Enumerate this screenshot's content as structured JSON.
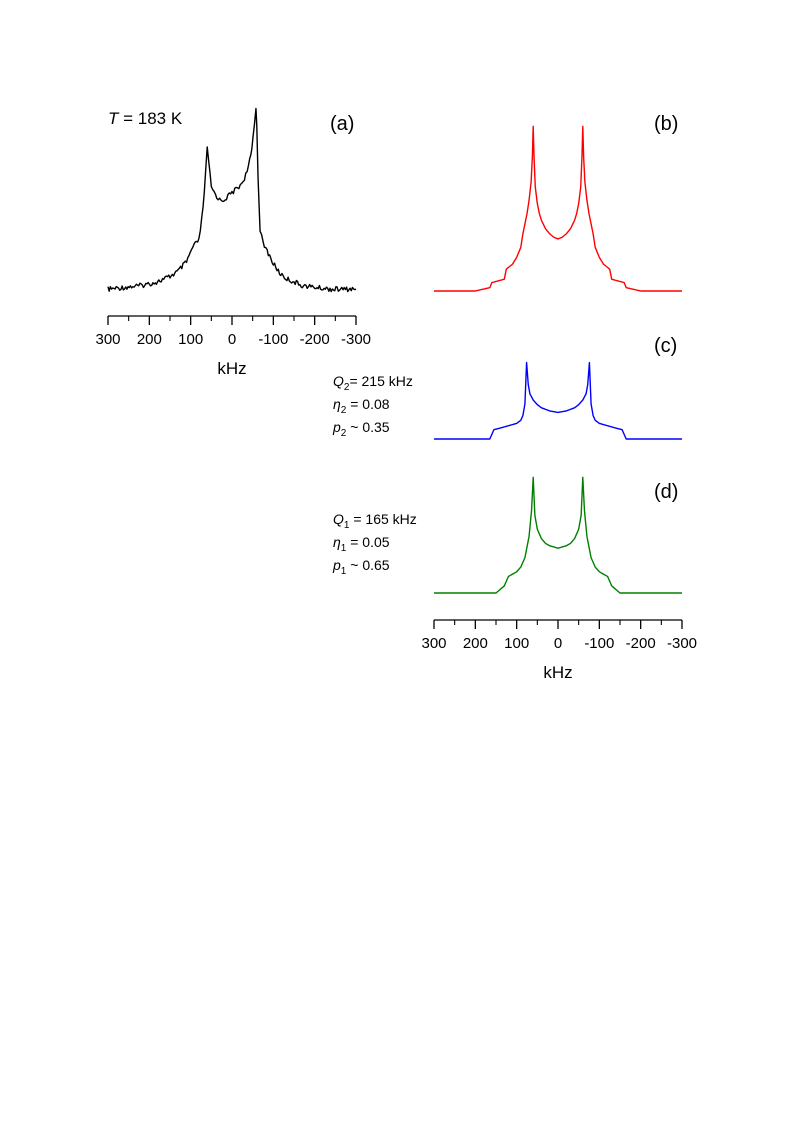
{
  "chart_data": [
    {
      "panel": "(a)",
      "type": "line",
      "kind": "experimental",
      "annotation": {
        "symbol": "T",
        "text": " = 183 K"
      },
      "xlabel": "kHz",
      "xlim": [
        300,
        -300
      ],
      "xticks": [
        300,
        200,
        100,
        0,
        -100,
        -200,
        -300
      ],
      "x_reversed": true,
      "color": "#000000",
      "noise": true,
      "series": [
        {
          "x": [
            300,
            260,
            220,
            180,
            150,
            130,
            110,
            95,
            80,
            70,
            64,
            60,
            56,
            50,
            40,
            30,
            20,
            10,
            0,
            -10,
            -20,
            -30,
            -40,
            -48,
            -54,
            -58,
            -60,
            -63,
            -68,
            -75,
            -85,
            -100,
            -115,
            -130,
            -150,
            -170,
            -200,
            -240,
            -300
          ],
          "y": [
            0.01,
            0.02,
            0.03,
            0.05,
            0.08,
            0.11,
            0.16,
            0.24,
            0.28,
            0.45,
            0.65,
            0.78,
            0.7,
            0.57,
            0.53,
            0.5,
            0.5,
            0.52,
            0.54,
            0.56,
            0.58,
            0.62,
            0.68,
            0.78,
            0.92,
            1.0,
            0.92,
            0.62,
            0.34,
            0.26,
            0.22,
            0.15,
            0.1,
            0.07,
            0.05,
            0.03,
            0.02,
            0.01,
            0.01
          ]
        }
      ]
    },
    {
      "panel": "(b)",
      "type": "line",
      "kind": "simulation-sum",
      "xlim": [
        300,
        -300
      ],
      "x_reversed": true,
      "color": "#ff0000",
      "series": [
        {
          "x": [
            300,
            240,
            200,
            165,
            160,
            130,
            125,
            110,
            100,
            90,
            85,
            80,
            75,
            70,
            65,
            62,
            60,
            58,
            55,
            50,
            45,
            40,
            30,
            20,
            10,
            0,
            -10,
            -20,
            -30,
            -40,
            -45,
            -50,
            -55,
            -58,
            -60,
            -62,
            -65,
            -70,
            -75,
            -80,
            -85,
            -90,
            -100,
            -110,
            -125,
            -130,
            -160,
            -165,
            -200,
            -240,
            -300
          ],
          "y": [
            0.0,
            0.0,
            0.0,
            0.02,
            0.05,
            0.07,
            0.13,
            0.16,
            0.2,
            0.26,
            0.34,
            0.4,
            0.46,
            0.54,
            0.65,
            0.8,
            0.98,
            0.8,
            0.62,
            0.52,
            0.46,
            0.42,
            0.37,
            0.34,
            0.32,
            0.31,
            0.32,
            0.34,
            0.37,
            0.42,
            0.46,
            0.52,
            0.62,
            0.8,
            0.98,
            0.8,
            0.65,
            0.54,
            0.46,
            0.4,
            0.34,
            0.26,
            0.2,
            0.16,
            0.13,
            0.07,
            0.05,
            0.02,
            0.0,
            0.0,
            0.0
          ]
        }
      ]
    },
    {
      "panel": "(c)",
      "type": "line",
      "kind": "simulation-site-2",
      "xlim": [
        300,
        -300
      ],
      "x_reversed": true,
      "color": "#0000ff",
      "parameters": [
        {
          "symbol": "Q",
          "sub": "2",
          "text": "= 215 kHz"
        },
        {
          "symbol": "η",
          "sub": "2",
          "text": " = 0.08"
        },
        {
          "symbol": "p",
          "sub": "2",
          "text": " ~ 0.35"
        }
      ],
      "series": [
        {
          "x": [
            300,
            240,
            200,
            165,
            155,
            140,
            120,
            100,
            90,
            85,
            80,
            76,
            72,
            68,
            60,
            50,
            40,
            30,
            20,
            10,
            0,
            -10,
            -20,
            -30,
            -40,
            -50,
            -60,
            -68,
            -72,
            -76,
            -80,
            -85,
            -90,
            -100,
            -120,
            -140,
            -155,
            -165,
            -200,
            -240,
            -300
          ],
          "y": [
            0.0,
            0.0,
            0.0,
            0.0,
            0.12,
            0.14,
            0.17,
            0.2,
            0.24,
            0.3,
            0.45,
            0.98,
            0.7,
            0.58,
            0.5,
            0.44,
            0.4,
            0.38,
            0.36,
            0.35,
            0.34,
            0.35,
            0.36,
            0.38,
            0.4,
            0.44,
            0.5,
            0.58,
            0.7,
            0.98,
            0.45,
            0.3,
            0.24,
            0.2,
            0.17,
            0.14,
            0.12,
            0.0,
            0.0,
            0.0,
            0.0
          ]
        }
      ]
    },
    {
      "panel": "(d)",
      "type": "line",
      "kind": "simulation-site-1",
      "xlabel": "kHz",
      "xlim": [
        300,
        -300
      ],
      "xticks": [
        300,
        200,
        100,
        0,
        -100,
        -200,
        -300
      ],
      "x_reversed": true,
      "color": "#008000",
      "parameters": [
        {
          "symbol": "Q",
          "sub": "1",
          "text": " = 165 kHz"
        },
        {
          "symbol": "η",
          "sub": "1",
          "text": " = 0.05"
        },
        {
          "symbol": "p",
          "sub": "1",
          "text": " ~ 0.65"
        }
      ],
      "series": [
        {
          "x": [
            300,
            240,
            200,
            150,
            130,
            120,
            110,
            100,
            90,
            80,
            70,
            64,
            60,
            56,
            50,
            40,
            30,
            20,
            10,
            0,
            -10,
            -20,
            -30,
            -40,
            -50,
            -56,
            -60,
            -64,
            -70,
            -80,
            -90,
            -100,
            -110,
            -120,
            -130,
            -150,
            -200,
            -240,
            -300
          ],
          "y": [
            0.0,
            0.0,
            0.0,
            0.0,
            0.06,
            0.14,
            0.16,
            0.18,
            0.22,
            0.3,
            0.48,
            0.7,
            0.98,
            0.66,
            0.54,
            0.46,
            0.42,
            0.4,
            0.39,
            0.38,
            0.39,
            0.4,
            0.42,
            0.46,
            0.54,
            0.66,
            0.98,
            0.7,
            0.48,
            0.3,
            0.22,
            0.18,
            0.16,
            0.14,
            0.06,
            0.0,
            0.0,
            0.0,
            0.0
          ]
        }
      ]
    }
  ]
}
